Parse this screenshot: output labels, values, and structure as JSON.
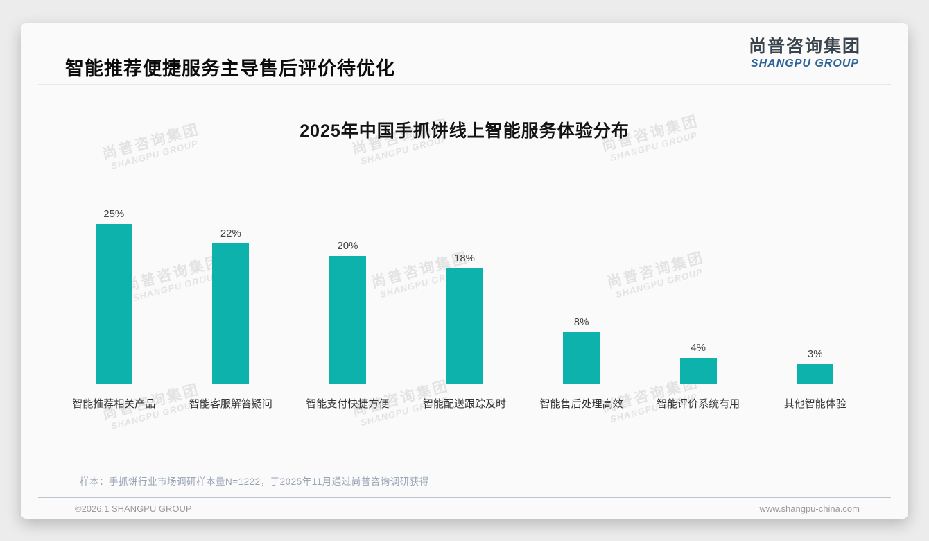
{
  "page": {
    "title": "智能推荐便捷服务主导售后评价待优化",
    "logo": {
      "cn": "尚普咨询集团",
      "en": "SHANGPU GROUP"
    },
    "watermark": {
      "line1": "尚普咨询集团",
      "line2": "SHANGPU GROUP"
    },
    "footnote": "样本：手抓饼行业市场调研样本量N=1222，于2025年11月通过尚普咨询调研获得",
    "footer": {
      "copyright": "©2026.1 SHANGPU GROUP",
      "website": "www.shangpu-china.com"
    }
  },
  "chart_data": {
    "type": "bar",
    "title": "2025年中国手抓饼线上智能服务体验分布",
    "categories": [
      "智能推荐相关产品",
      "智能客服解答疑问",
      "智能支付快捷方便",
      "智能配送跟踪及时",
      "智能售后处理高效",
      "智能评价系统有用",
      "其他智能体验"
    ],
    "values": [
      25,
      22,
      20,
      18,
      8,
      4,
      3
    ],
    "value_labels": [
      "25%",
      "22%",
      "20%",
      "18%",
      "8%",
      "4%",
      "3%"
    ],
    "unit": "%",
    "bar_color": "#0cb2ab",
    "ylim": [
      0,
      28
    ],
    "grid": false,
    "legend": "none",
    "xlabel": "",
    "ylabel": ""
  }
}
